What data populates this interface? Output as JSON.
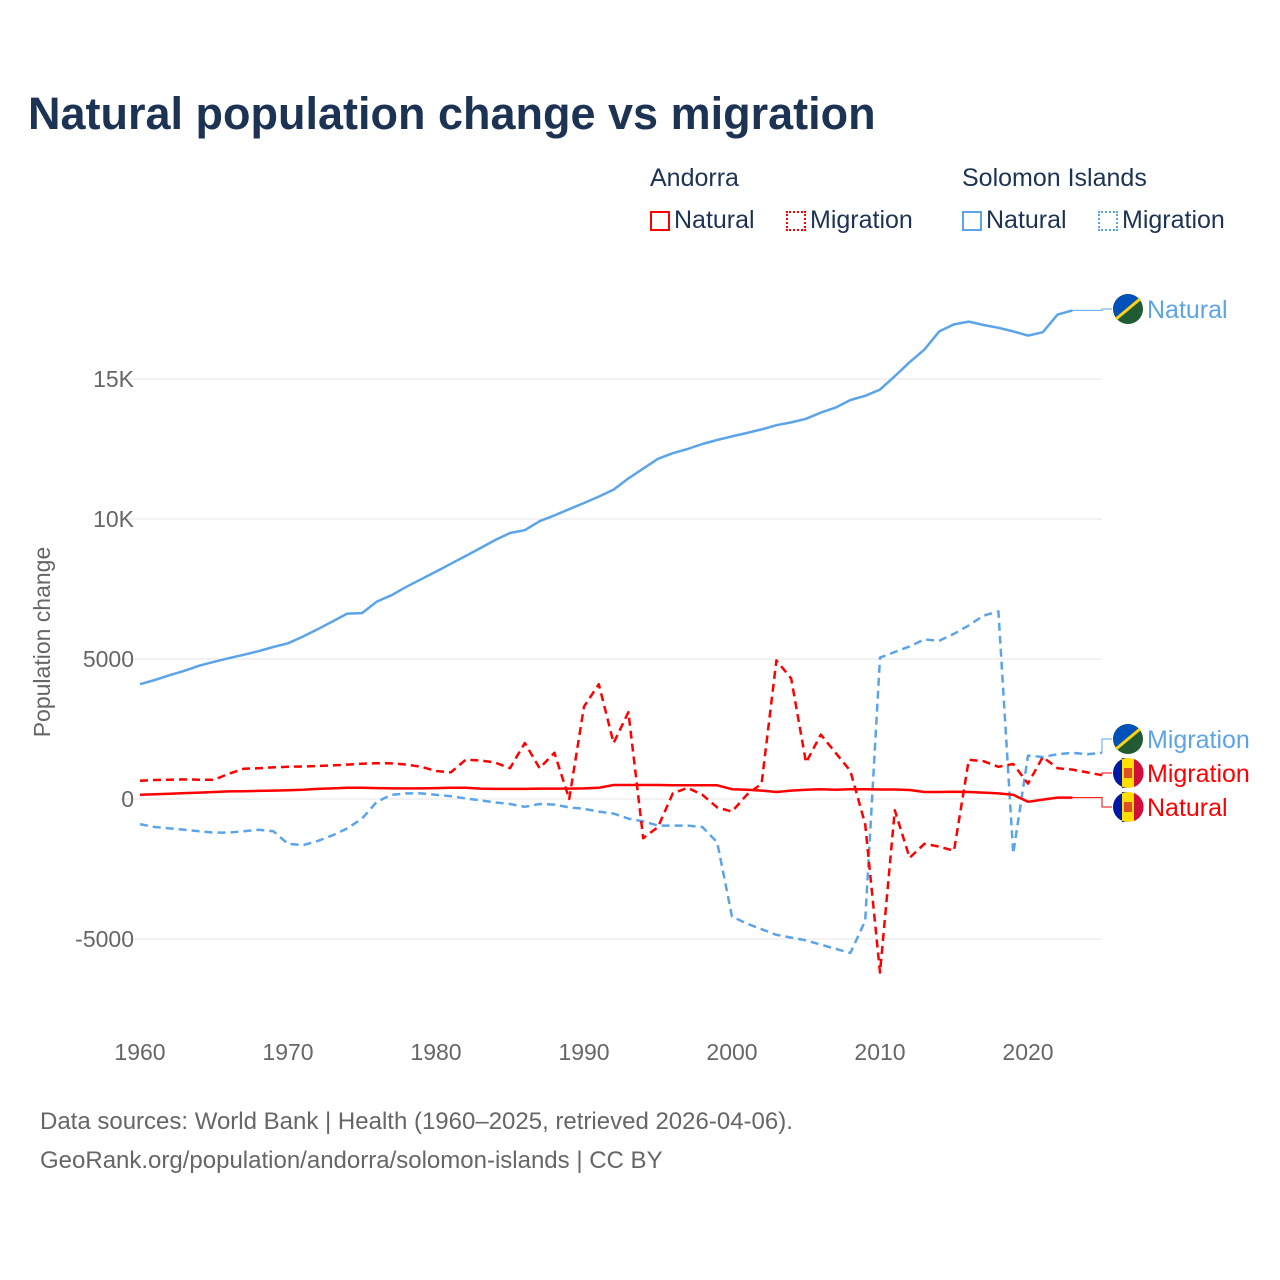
{
  "chart_data": {
    "type": "line",
    "title": "Natural population change vs migration",
    "xlabel": "",
    "ylabel": "Population change",
    "xlim": [
      1960,
      2025
    ],
    "ylim": [
      -6500,
      18500
    ],
    "grid": true,
    "x_ticks": [
      "1960",
      "1970",
      "1980",
      "1990",
      "2000",
      "2010",
      "2020"
    ],
    "y_ticks": [
      {
        "v": -5000,
        "label": "-5000"
      },
      {
        "v": 0,
        "label": "0"
      },
      {
        "v": 5000,
        "label": "5000"
      },
      {
        "v": 10000,
        "label": "10K"
      },
      {
        "v": 15000,
        "label": "15K"
      }
    ],
    "legend": {
      "placement": "top-right",
      "groups": [
        {
          "name": "Andorra",
          "items": [
            "Natural",
            "Migration"
          ]
        },
        {
          "name": "Solomon Islands",
          "items": [
            "Natural",
            "Migration"
          ]
        }
      ]
    },
    "series": [
      {
        "country": "Solomon Islands",
        "name": "Natural",
        "color": "#5ba4e8",
        "dash": false,
        "end_label": "Natural",
        "start": 1960,
        "values": [
          4100,
          4250,
          4420,
          4580,
          4760,
          4900,
          5030,
          5150,
          5280,
          5430,
          5560,
          5800,
          6060,
          6340,
          6620,
          6640,
          7050,
          7280,
          7580,
          7850,
          8120,
          8400,
          8680,
          8960,
          9250,
          9500,
          9600,
          9920,
          10130,
          10350,
          10570,
          10800,
          11050,
          11450,
          11800,
          12150,
          12350,
          12500,
          12680,
          12820,
          12950,
          13070,
          13200,
          13350,
          13450,
          13580,
          13800,
          13980,
          14250,
          14400,
          14620,
          15100,
          15600,
          16050,
          16700,
          16950,
          17050,
          16930,
          16830,
          16700,
          16550,
          16670,
          17300,
          17450
        ]
      },
      {
        "country": "Solomon Islands",
        "name": "Migration",
        "color": "#5ba4e8",
        "dash": true,
        "end_label": "Migration",
        "start": 1960,
        "values": [
          -900,
          -1000,
          -1050,
          -1100,
          -1150,
          -1200,
          -1200,
          -1150,
          -1100,
          -1150,
          -1600,
          -1650,
          -1500,
          -1300,
          -1050,
          -700,
          -100,
          150,
          200,
          200,
          150,
          100,
          20,
          -50,
          -120,
          -180,
          -280,
          -180,
          -200,
          -300,
          -350,
          -450,
          -520,
          -700,
          -800,
          -950,
          -950,
          -950,
          -1000,
          -1550,
          -4200,
          -4450,
          -4650,
          -4850,
          -4950,
          -5050,
          -5200,
          -5350,
          -5500,
          -4350,
          5050,
          5250,
          5450,
          5700,
          5650,
          5900,
          6200,
          6550,
          6700,
          -1950,
          1550,
          1500,
          1600,
          1650,
          1600,
          1650
        ]
      },
      {
        "country": "Andorra",
        "name": "Migration",
        "color": "#ff0000",
        "dash": true,
        "end_label": "Migration",
        "start": 1960,
        "values": [
          650,
          680,
          690,
          700,
          690,
          690,
          900,
          1080,
          1100,
          1130,
          1150,
          1160,
          1180,
          1200,
          1230,
          1260,
          1280,
          1270,
          1230,
          1150,
          1000,
          950,
          1400,
          1380,
          1300,
          1100,
          2000,
          1100,
          1650,
          0,
          3300,
          4100,
          2000,
          3100,
          -1400,
          -1000,
          200,
          400,
          150,
          -300,
          -450,
          150,
          550,
          4950,
          4300,
          1300,
          2300,
          1650,
          1000,
          -900,
          -6200,
          -400,
          -2100,
          -1600,
          -1700,
          -1850,
          1400,
          1350,
          1150,
          1250,
          550,
          1500,
          1100,
          1050,
          950,
          850
        ]
      },
      {
        "country": "Andorra",
        "name": "Natural",
        "color": "#ff0000",
        "dash": false,
        "end_label": "Natural",
        "start": 1960,
        "values": [
          150,
          170,
          190,
          210,
          230,
          250,
          270,
          280,
          290,
          300,
          310,
          330,
          360,
          380,
          400,
          400,
          390,
          380,
          380,
          380,
          390,
          400,
          400,
          370,
          360,
          360,
          360,
          370,
          370,
          370,
          380,
          400,
          500,
          500,
          500,
          500,
          490,
          490,
          490,
          490,
          350,
          330,
          300,
          250,
          300,
          330,
          350,
          330,
          350,
          350,
          340,
          340,
          320,
          250,
          250,
          260,
          250,
          230,
          200,
          150,
          -100,
          -20,
          50,
          50
        ]
      }
    ]
  },
  "legend": {
    "andorra": "Andorra",
    "solomon": "Solomon Islands",
    "natural": "Natural",
    "migration": "Migration"
  },
  "footer": {
    "line1": "Data sources: World Bank | Health (1960–2025, retrieved 2026-04-06).",
    "line2": "GeoRank.org/population/andorra/solomon-islands | CC BY"
  }
}
